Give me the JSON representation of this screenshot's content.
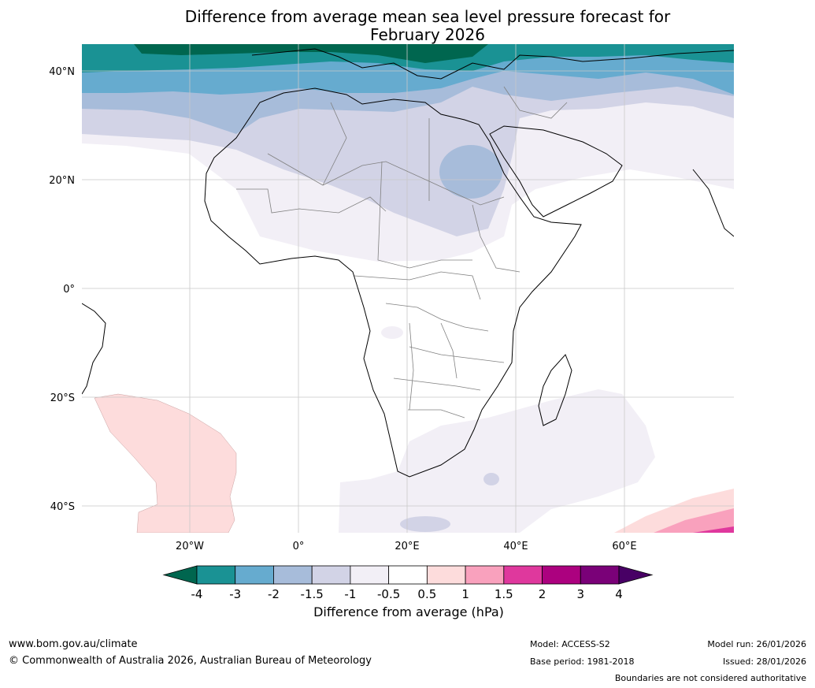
{
  "title_line1": "Difference from average mean sea level pressure forecast for",
  "title_line2": "February 2026",
  "lat_labels": [
    "40°N",
    "20°N",
    "0°",
    "20°S",
    "40°S"
  ],
  "lon_labels": [
    "20°W",
    "0°",
    "20°E",
    "40°E",
    "60°E"
  ],
  "colorbar": {
    "label": "Difference from average (hPa)",
    "ticks": [
      "-4",
      "-3",
      "-2",
      "-1.5",
      "-1",
      "-0.5",
      "0.5",
      "1",
      "1.5",
      "2",
      "3",
      "4"
    ],
    "colors": [
      "#00664f",
      "#1a9294",
      "#66abcf",
      "#a7bcda",
      "#d2d3e6",
      "#f2eff6",
      "#ffffff",
      "#fddcdc",
      "#f9a1bd",
      "#df389d",
      "#ac017f",
      "#7a0178",
      "#480065"
    ]
  },
  "footer": {
    "url": "www.bom.gov.au/climate",
    "copyright": "© Commonwealth of Australia 2026, Australian Bureau of Meteorology",
    "model": "Model: ACCESS-S2",
    "base_period": "Base period: 1981-2018",
    "model_run": "Model run: 26/01/2026",
    "issued": "Issued: 28/01/2026",
    "disclaimer": "Boundaries are not considered authoritative"
  }
}
